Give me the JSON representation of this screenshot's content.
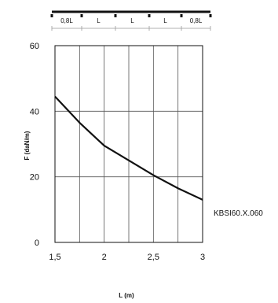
{
  "chart_data": {
    "type": "line",
    "xlabel": "L (m)",
    "ylabel": "F (daN/m)",
    "xlim": [
      1.5,
      3
    ],
    "ylim": [
      0,
      60
    ],
    "x_ticks": [
      1.5,
      2,
      2.5,
      3
    ],
    "x_tick_labels": [
      "1,5",
      "2",
      "2,5",
      "3"
    ],
    "y_ticks": [
      0,
      20,
      40,
      60
    ],
    "y_tick_labels": [
      "0",
      "20",
      "40",
      "60"
    ],
    "x_grid": [
      1.5,
      1.75,
      2,
      2.25,
      2.5,
      2.75,
      3
    ],
    "y_grid": [
      0,
      20,
      40,
      60
    ],
    "grid": true,
    "series": [
      {
        "name": "KBSI60.X.060",
        "x": [
          1.5,
          1.75,
          2,
          2.25,
          2.5,
          2.75,
          3
        ],
        "y": [
          44.5,
          36.5,
          29.5,
          25.0,
          20.5,
          16.5,
          13.0
        ]
      }
    ],
    "span_diagram": {
      "labels": [
        "0,8L",
        "L",
        "L",
        "L",
        "0,8L"
      ]
    }
  }
}
